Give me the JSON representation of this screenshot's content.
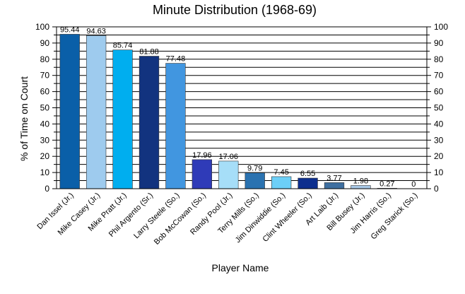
{
  "chart_data": {
    "type": "bar",
    "title": "Minute Distribution (1968-69)",
    "xlabel": "Player Name",
    "ylabel": "% of Time on Court",
    "ylim": [
      0,
      100
    ],
    "yticks": [
      0,
      10,
      20,
      30,
      40,
      50,
      60,
      70,
      80,
      90,
      100
    ],
    "grid": true,
    "categories": [
      "Dan Issel (Jr.)",
      "Mike Casey (Jr.)",
      "Mike Pratt (Jr.)",
      "Phil Argento (Sr.)",
      "Larry Steele (So.)",
      "Bob McCowan (So.)",
      "Randy Pool (Jr.)",
      "Terry Mills (So.)",
      "Jim Dinwiddie (So.)",
      "Clint Wheeler (So.)",
      "Art Laib (Jr.)",
      "Bill Busey (Jr.)",
      "Jim Harris (So.)",
      "Greg Starick (So.)"
    ],
    "values": [
      95.44,
      94.63,
      85.74,
      81.88,
      77.48,
      17.96,
      17.06,
      9.79,
      7.45,
      6.55,
      3.77,
      1.98,
      0.27,
      0
    ],
    "value_labels": [
      "95.44",
      "94.63",
      "85.74",
      "81.88",
      "77.48",
      "17.96",
      "17.06",
      "9.79",
      "7.45",
      "6.55",
      "3.77",
      "1.98",
      "0.27",
      "0"
    ],
    "colors": [
      "#0a5fa8",
      "#9ecbee",
      "#00aeef",
      "#12337f",
      "#4196e0",
      "#2f3bb8",
      "#a6def8",
      "#2a72b0",
      "#6ccff7",
      "#0d2f8e",
      "#3e6fa0",
      "#a8c8e6",
      "#87cdf0",
      "#c8e6f8"
    ]
  }
}
